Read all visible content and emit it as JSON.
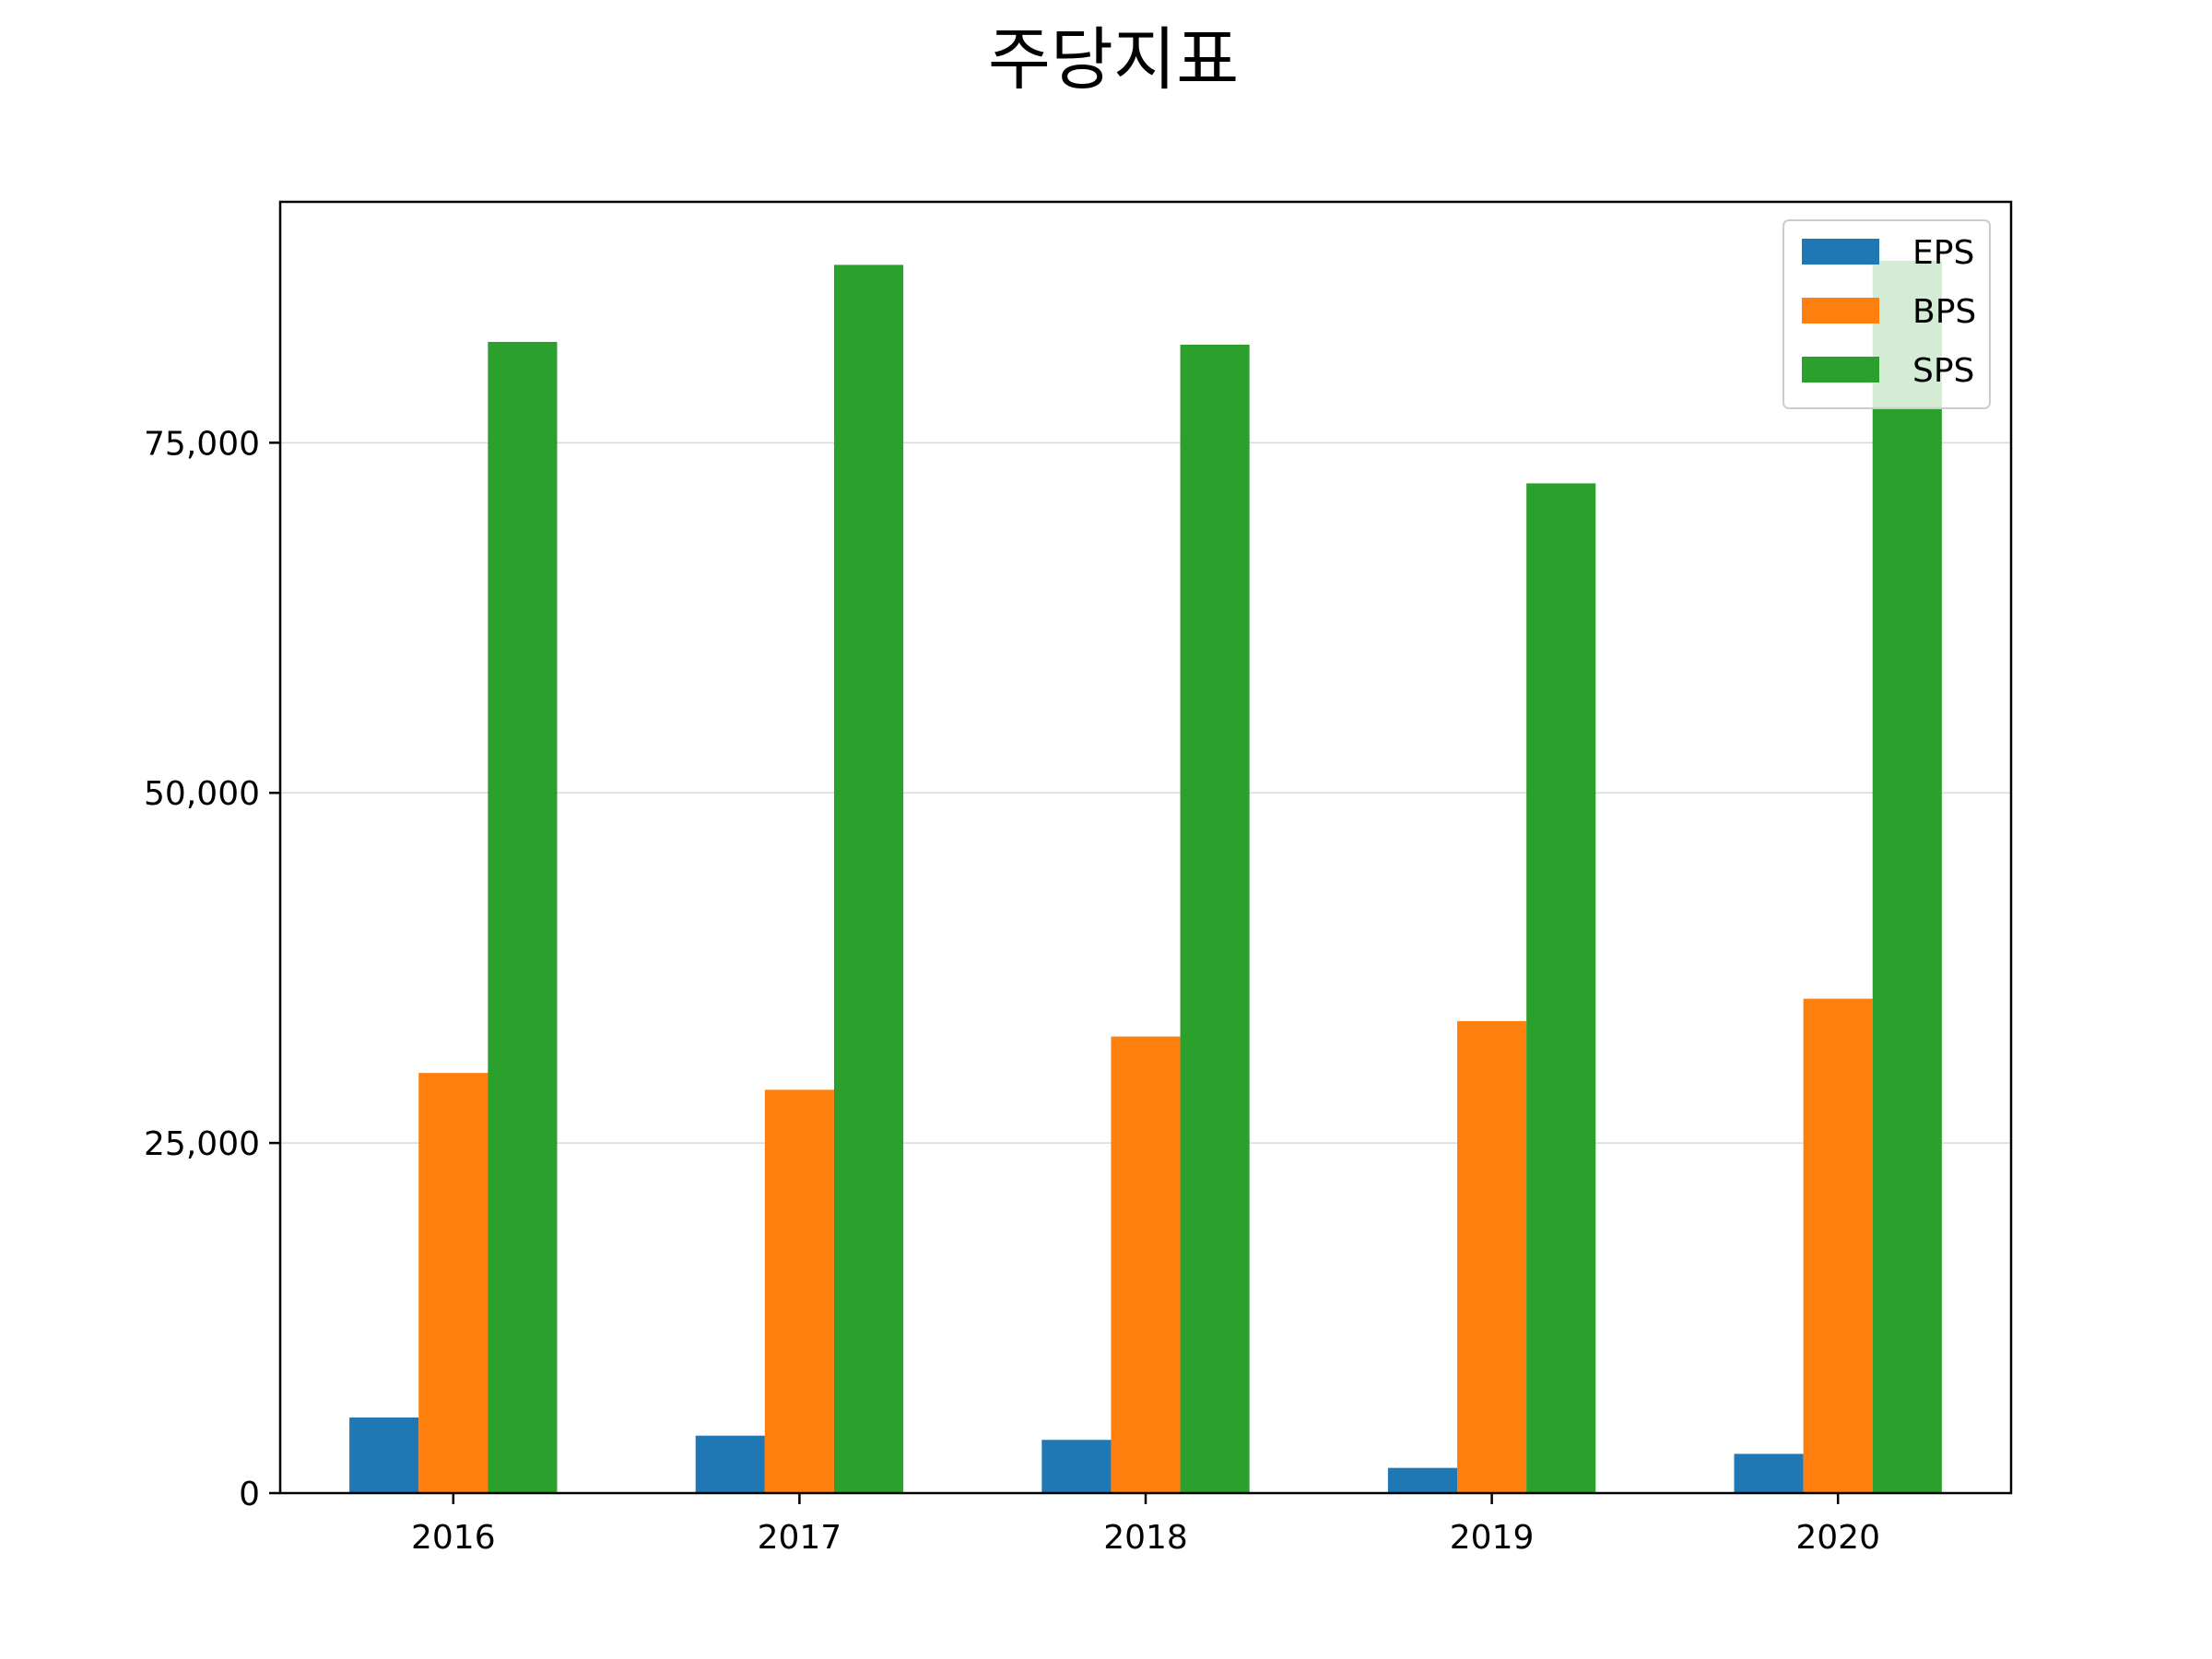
{
  "chart_data": {
    "type": "bar",
    "title": "주당지표",
    "xlabel": "",
    "ylabel": "",
    "categories": [
      "2016",
      "2017",
      "2018",
      "2019",
      "2020"
    ],
    "series": [
      {
        "name": "EPS",
        "color": "#1f77b4",
        "values": [
          5400,
          4100,
          3800,
          1800,
          2800
        ]
      },
      {
        "name": "BPS",
        "color": "#ff7f0e",
        "values": [
          30000,
          28800,
          32600,
          33700,
          35300
        ]
      },
      {
        "name": "SPS",
        "color": "#2ca02c",
        "values": [
          82200,
          87700,
          82000,
          72100,
          88000
        ]
      }
    ],
    "ylim": [
      0,
      92200
    ],
    "yticks": [
      0,
      25000,
      50000,
      75000
    ],
    "ytick_labels": [
      "0",
      "25,000",
      "50,000",
      "75,000"
    ],
    "grid": {
      "y": true,
      "x": false
    },
    "legend": {
      "position": "top-right"
    }
  }
}
